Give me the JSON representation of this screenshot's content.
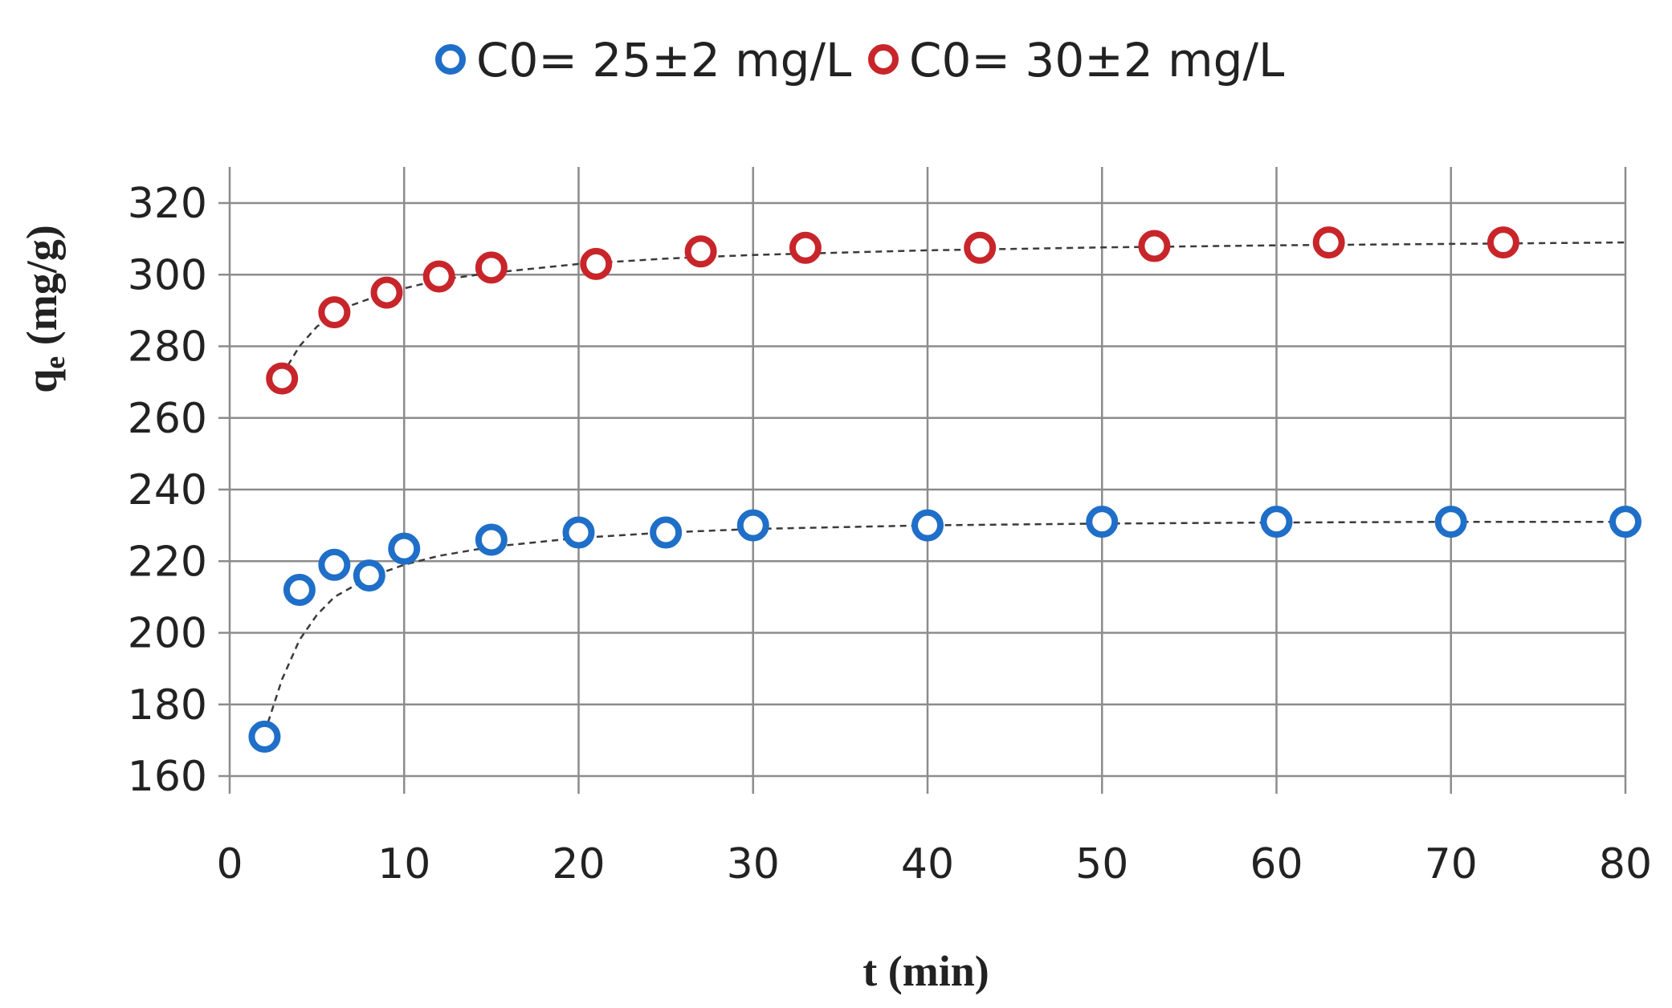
{
  "chart_data": {
    "type": "scatter",
    "title": "",
    "xlabel": "t (min)",
    "ylabel": {
      "main": "q",
      "sub": "e",
      "units": " (mg/g)"
    },
    "xlim": [
      0,
      80
    ],
    "ylim": [
      160,
      320
    ],
    "xticks": [
      0,
      10,
      20,
      30,
      40,
      50,
      60,
      70,
      80
    ],
    "yticks": [
      160,
      180,
      200,
      220,
      240,
      260,
      280,
      300,
      320
    ],
    "grid": true,
    "legend_position": "top-center",
    "series": [
      {
        "name": "C0= 25±2 mg/L",
        "color": "#1f6fc8",
        "marker": "open-circle",
        "x": [
          2,
          4,
          6,
          8,
          10,
          15,
          20,
          25,
          30,
          40,
          50,
          60,
          70,
          80
        ],
        "y": [
          171,
          212,
          219,
          216,
          223.5,
          226,
          228,
          228,
          230,
          230,
          231,
          231,
          231,
          231
        ],
        "fit": {
          "style": "dashed",
          "color": "#3a3a3a",
          "x": [
            2,
            3,
            4,
            5,
            6,
            8,
            10,
            12,
            15,
            20,
            25,
            30,
            40,
            50,
            60,
            70,
            80
          ],
          "y": [
            172,
            187,
            198,
            205,
            210,
            215.5,
            219,
            221.5,
            224,
            226.5,
            228,
            229,
            230,
            230.5,
            230.8,
            231,
            231
          ]
        }
      },
      {
        "name": "C0= 30±2 mg/L",
        "color": "#c8252b",
        "marker": "open-circle",
        "x": [
          3,
          6,
          9,
          12,
          15,
          21,
          27,
          33,
          43,
          53,
          63,
          73
        ],
        "y": [
          271,
          289.5,
          295,
          299.5,
          302,
          303,
          306.5,
          307.5,
          307.5,
          308,
          309,
          309
        ],
        "fit": {
          "style": "dashed",
          "color": "#3a3a3a",
          "x": [
            3,
            4,
            5,
            6,
            7,
            9,
            12,
            15,
            20,
            25,
            30,
            40,
            50,
            60,
            70,
            80
          ],
          "y": [
            272,
            280,
            285.5,
            289,
            291.5,
            295,
            298.5,
            300.5,
            303,
            304.5,
            305.5,
            306.8,
            307.6,
            308.2,
            308.6,
            309
          ]
        }
      }
    ]
  }
}
